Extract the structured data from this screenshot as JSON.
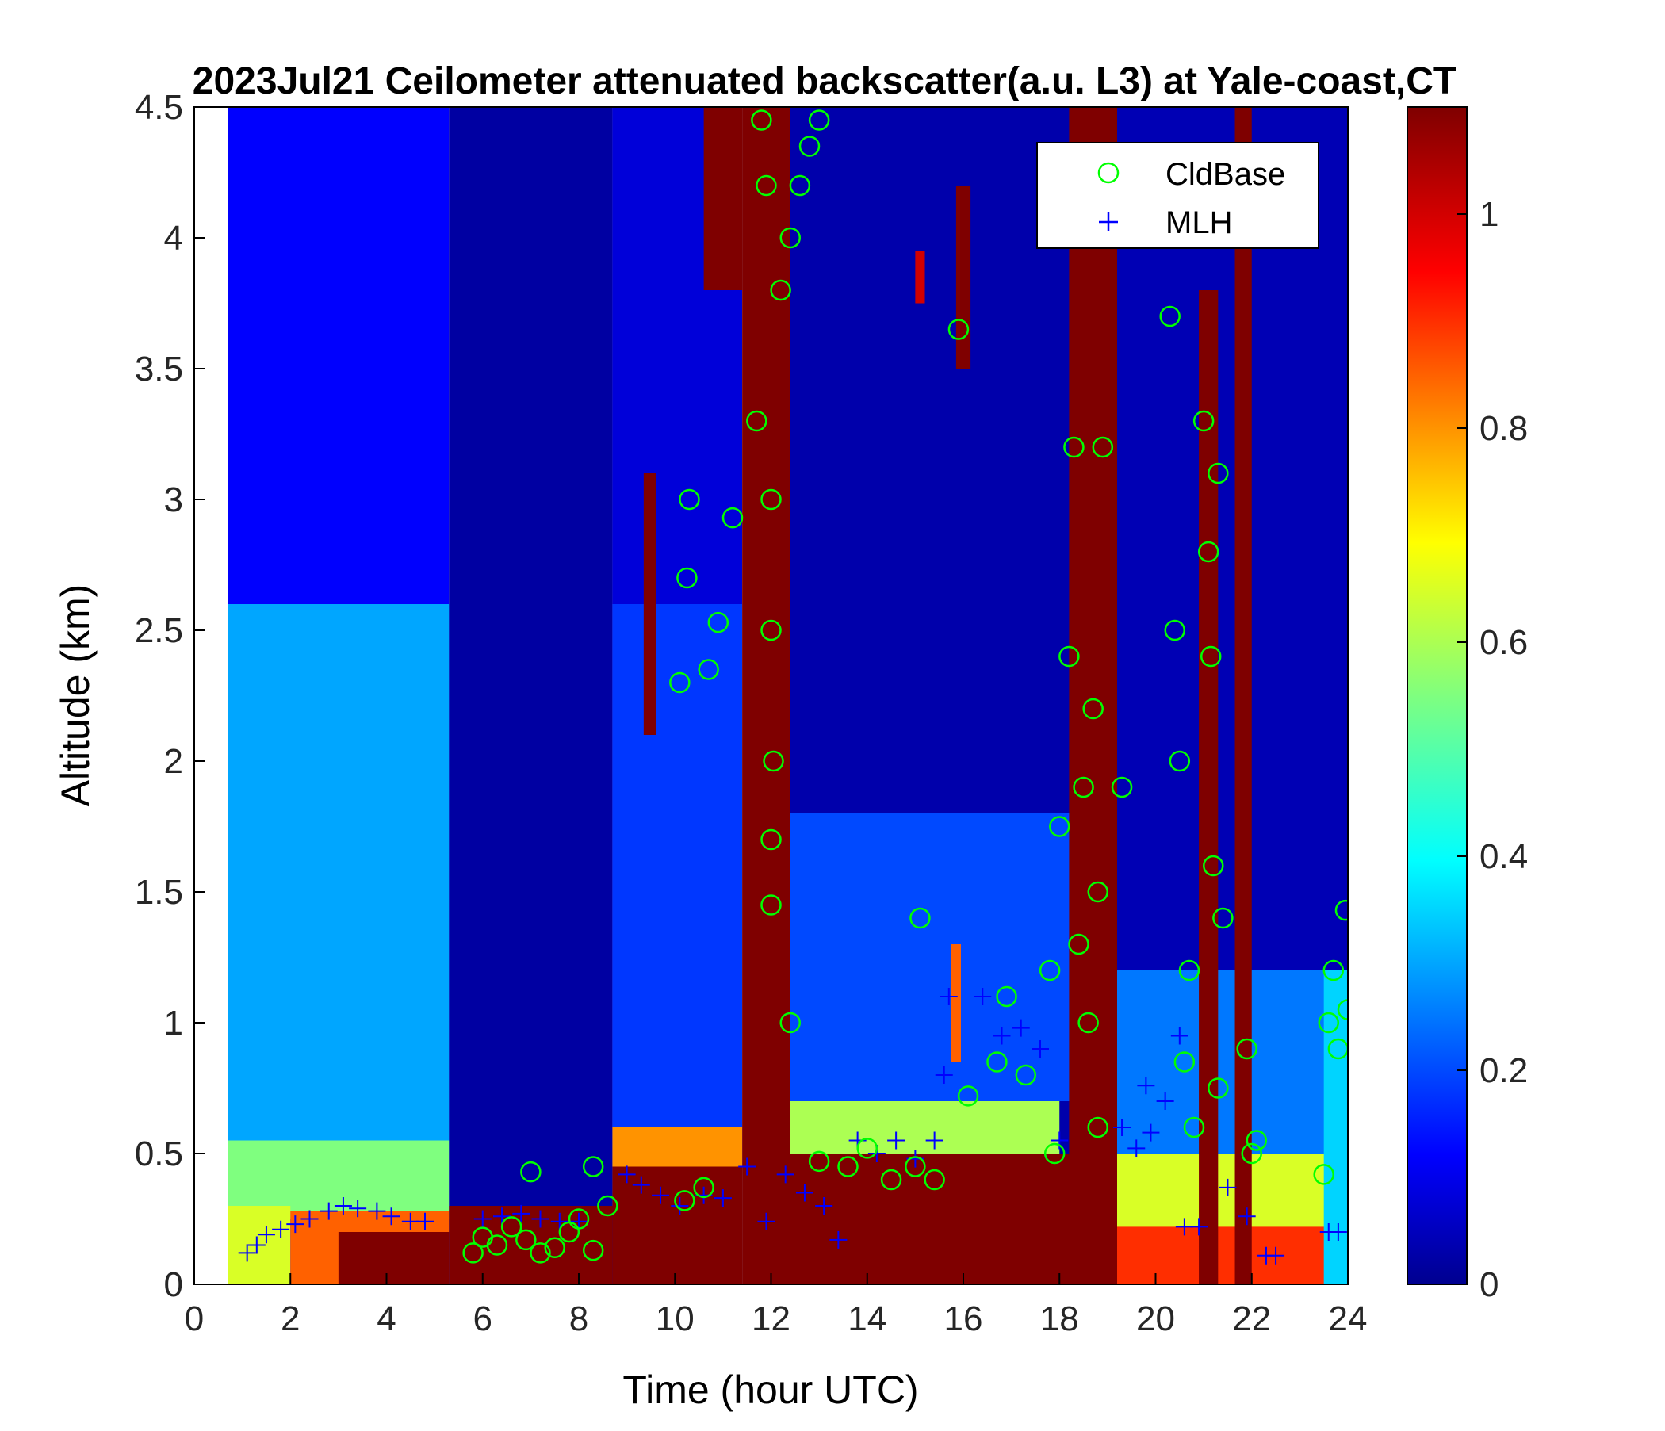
{
  "chart_data": {
    "type": "heatmap",
    "title": "2023Jul21 Ceilometer attenuated backscatter(a.u. L3) at Yale-coast,CT",
    "xlabel": "Time (hour UTC)",
    "ylabel": "Altitude (km)",
    "xlim": [
      0,
      24
    ],
    "ylim": [
      0,
      4.5
    ],
    "xticks": [
      0,
      2,
      4,
      6,
      8,
      10,
      12,
      14,
      16,
      18,
      20,
      22,
      24
    ],
    "yticks": [
      0,
      0.5,
      1,
      1.5,
      2,
      2.5,
      3,
      3.5,
      4,
      4.5
    ],
    "xtick_labels": [
      "0",
      "2",
      "4",
      "6",
      "8",
      "10",
      "12",
      "14",
      "16",
      "18",
      "20",
      "22",
      "24"
    ],
    "ytick_labels": [
      "0",
      "0.5",
      "1",
      "1.5",
      "2",
      "2.5",
      "3",
      "3.5",
      "4",
      "4.5"
    ],
    "colorbar": {
      "colormap": "jet",
      "range": [
        0,
        1.1
      ],
      "ticks": [
        0,
        0.2,
        0.4,
        0.6,
        0.8,
        1
      ],
      "tick_labels": [
        "0",
        "0.2",
        "0.4",
        "0.6",
        "0.8",
        "1"
      ]
    },
    "grid": false,
    "legend": {
      "position": "top-right",
      "entries": [
        {
          "label": "CldBase",
          "marker": "circle",
          "color": "#00ff00"
        },
        {
          "label": "MLH",
          "marker": "plus",
          "color": "#0000ff"
        }
      ]
    },
    "heatmap_regions": [
      {
        "t0": 0.7,
        "t1": 5.3,
        "a0": 0.0,
        "a1": 4.5,
        "value": 0.12
      },
      {
        "t0": 0.7,
        "t1": 5.3,
        "a0": 0.5,
        "a1": 2.6,
        "value": 0.3
      },
      {
        "t0": 0.7,
        "t1": 5.3,
        "a0": 0.25,
        "a1": 0.55,
        "value": 0.55
      },
      {
        "t0": 0.7,
        "t1": 2.0,
        "a0": 0.0,
        "a1": 0.3,
        "value": 0.65
      },
      {
        "t0": 2.0,
        "t1": 5.3,
        "a0": 0.0,
        "a1": 0.28,
        "value": 0.85
      },
      {
        "t0": 3.0,
        "t1": 5.3,
        "a0": 0.0,
        "a1": 0.2,
        "value": 1.1
      },
      {
        "t0": 5.3,
        "t1": 8.7,
        "a0": 0.0,
        "a1": 4.5,
        "value": 0.02
      },
      {
        "t0": 5.3,
        "t1": 8.7,
        "a0": 0.0,
        "a1": 0.3,
        "value": 1.1
      },
      {
        "t0": 8.7,
        "t1": 11.4,
        "a0": 0.0,
        "a1": 4.5,
        "value": 0.08
      },
      {
        "t0": 8.7,
        "t1": 11.4,
        "a0": 0.6,
        "a1": 2.6,
        "value": 0.18
      },
      {
        "t0": 8.7,
        "t1": 11.4,
        "a0": 0.45,
        "a1": 0.6,
        "value": 0.8
      },
      {
        "t0": 8.7,
        "t1": 11.4,
        "a0": 0.0,
        "a1": 0.45,
        "value": 1.1
      },
      {
        "t0": 9.35,
        "t1": 9.6,
        "a0": 2.1,
        "a1": 3.1,
        "value": 1.1
      },
      {
        "t0": 11.4,
        "t1": 12.4,
        "a0": 0.0,
        "a1": 4.5,
        "value": 1.1
      },
      {
        "t0": 10.6,
        "t1": 11.4,
        "a0": 3.8,
        "a1": 4.5,
        "value": 1.1
      },
      {
        "t0": 12.4,
        "t1": 19.2,
        "a0": 0.0,
        "a1": 4.5,
        "value": 0.03
      },
      {
        "t0": 12.4,
        "t1": 19.2,
        "a0": 0.7,
        "a1": 1.8,
        "value": 0.2
      },
      {
        "t0": 12.4,
        "t1": 18.0,
        "a0": 0.5,
        "a1": 0.7,
        "value": 0.6
      },
      {
        "t0": 12.4,
        "t1": 19.2,
        "a0": 0.0,
        "a1": 0.5,
        "value": 1.1
      },
      {
        "t0": 15.85,
        "t1": 16.15,
        "a0": 3.5,
        "a1": 4.2,
        "value": 1.1
      },
      {
        "t0": 15.0,
        "t1": 15.2,
        "a0": 3.75,
        "a1": 3.95,
        "value": 1.0
      },
      {
        "t0": 15.75,
        "t1": 15.95,
        "a0": 0.85,
        "a1": 1.3,
        "value": 0.85
      },
      {
        "t0": 18.2,
        "t1": 19.2,
        "a0": 0.0,
        "a1": 4.5,
        "value": 1.1
      },
      {
        "t0": 19.2,
        "t1": 24.0,
        "a0": 0.0,
        "a1": 4.5,
        "value": 0.04
      },
      {
        "t0": 19.2,
        "t1": 24.0,
        "a0": 0.4,
        "a1": 1.2,
        "value": 0.25
      },
      {
        "t0": 19.2,
        "t1": 24.0,
        "a0": 0.2,
        "a1": 0.5,
        "value": 0.65
      },
      {
        "t0": 19.2,
        "t1": 24.0,
        "a0": 0.0,
        "a1": 0.22,
        "value": 0.9
      },
      {
        "t0": 20.9,
        "t1": 21.3,
        "a0": 0.0,
        "a1": 3.8,
        "value": 1.1
      },
      {
        "t0": 21.65,
        "t1": 22.0,
        "a0": 0.0,
        "a1": 4.5,
        "value": 1.1
      },
      {
        "t0": 23.5,
        "t1": 24.0,
        "a0": 0.0,
        "a1": 1.2,
        "value": 0.35
      }
    ],
    "cloud_base": [
      {
        "x": 5.8,
        "y": 0.12
      },
      {
        "x": 6.0,
        "y": 0.18
      },
      {
        "x": 6.3,
        "y": 0.15
      },
      {
        "x": 6.6,
        "y": 0.22
      },
      {
        "x": 6.9,
        "y": 0.17
      },
      {
        "x": 7.2,
        "y": 0.12
      },
      {
        "x": 7.5,
        "y": 0.14
      },
      {
        "x": 7.8,
        "y": 0.2
      },
      {
        "x": 8.0,
        "y": 0.25
      },
      {
        "x": 8.3,
        "y": 0.13
      },
      {
        "x": 8.6,
        "y": 0.3
      },
      {
        "x": 7.0,
        "y": 0.43
      },
      {
        "x": 8.3,
        "y": 0.45
      },
      {
        "x": 10.1,
        "y": 2.3
      },
      {
        "x": 10.25,
        "y": 2.7
      },
      {
        "x": 10.3,
        "y": 3.0
      },
      {
        "x": 10.7,
        "y": 2.35
      },
      {
        "x": 10.9,
        "y": 2.53
      },
      {
        "x": 10.2,
        "y": 0.32
      },
      {
        "x": 10.6,
        "y": 0.37
      },
      {
        "x": 11.2,
        "y": 2.93
      },
      {
        "x": 11.7,
        "y": 3.3
      },
      {
        "x": 11.8,
        "y": 4.45
      },
      {
        "x": 11.9,
        "y": 4.2
      },
      {
        "x": 12.0,
        "y": 3.0
      },
      {
        "x": 12.0,
        "y": 2.5
      },
      {
        "x": 12.05,
        "y": 2.0
      },
      {
        "x": 12.0,
        "y": 1.7
      },
      {
        "x": 12.0,
        "y": 1.45
      },
      {
        "x": 12.2,
        "y": 3.8
      },
      {
        "x": 12.4,
        "y": 4.0
      },
      {
        "x": 12.6,
        "y": 4.2
      },
      {
        "x": 12.8,
        "y": 4.35
      },
      {
        "x": 13.0,
        "y": 4.45
      },
      {
        "x": 12.4,
        "y": 1.0
      },
      {
        "x": 13.0,
        "y": 0.47
      },
      {
        "x": 13.6,
        "y": 0.45
      },
      {
        "x": 14.0,
        "y": 0.52
      },
      {
        "x": 14.5,
        "y": 0.4
      },
      {
        "x": 15.0,
        "y": 0.45
      },
      {
        "x": 15.1,
        "y": 1.4
      },
      {
        "x": 15.4,
        "y": 0.4
      },
      {
        "x": 15.9,
        "y": 3.65
      },
      {
        "x": 16.1,
        "y": 0.72
      },
      {
        "x": 16.7,
        "y": 0.85
      },
      {
        "x": 16.9,
        "y": 1.1
      },
      {
        "x": 17.3,
        "y": 0.8
      },
      {
        "x": 17.8,
        "y": 1.2
      },
      {
        "x": 17.9,
        "y": 0.5
      },
      {
        "x": 18.0,
        "y": 1.75
      },
      {
        "x": 18.2,
        "y": 2.4
      },
      {
        "x": 18.3,
        "y": 3.2
      },
      {
        "x": 18.4,
        "y": 1.3
      },
      {
        "x": 18.5,
        "y": 1.9
      },
      {
        "x": 18.6,
        "y": 1.0
      },
      {
        "x": 18.7,
        "y": 2.2
      },
      {
        "x": 18.8,
        "y": 1.5
      },
      {
        "x": 18.8,
        "y": 0.6
      },
      {
        "x": 18.9,
        "y": 3.2
      },
      {
        "x": 19.3,
        "y": 1.9
      },
      {
        "x": 20.3,
        "y": 3.7
      },
      {
        "x": 20.4,
        "y": 2.5
      },
      {
        "x": 20.5,
        "y": 2.0
      },
      {
        "x": 20.6,
        "y": 0.85
      },
      {
        "x": 20.7,
        "y": 1.2
      },
      {
        "x": 20.8,
        "y": 0.6
      },
      {
        "x": 21.0,
        "y": 3.3
      },
      {
        "x": 21.1,
        "y": 2.8
      },
      {
        "x": 21.15,
        "y": 2.4
      },
      {
        "x": 21.2,
        "y": 1.6
      },
      {
        "x": 21.3,
        "y": 3.1
      },
      {
        "x": 21.4,
        "y": 1.4
      },
      {
        "x": 21.3,
        "y": 0.75
      },
      {
        "x": 21.9,
        "y": 0.9
      },
      {
        "x": 22.0,
        "y": 0.5
      },
      {
        "x": 22.1,
        "y": 0.55
      },
      {
        "x": 23.5,
        "y": 0.42
      },
      {
        "x": 23.6,
        "y": 1.0
      },
      {
        "x": 23.7,
        "y": 1.2
      },
      {
        "x": 23.8,
        "y": 0.9
      },
      {
        "x": 23.95,
        "y": 1.43
      },
      {
        "x": 24.0,
        "y": 1.05
      }
    ],
    "mlh": [
      {
        "x": 1.1,
        "y": 0.12
      },
      {
        "x": 1.3,
        "y": 0.15
      },
      {
        "x": 1.5,
        "y": 0.19
      },
      {
        "x": 1.8,
        "y": 0.21
      },
      {
        "x": 2.1,
        "y": 0.23
      },
      {
        "x": 2.4,
        "y": 0.25
      },
      {
        "x": 2.8,
        "y": 0.28
      },
      {
        "x": 3.1,
        "y": 0.3
      },
      {
        "x": 3.4,
        "y": 0.29
      },
      {
        "x": 3.8,
        "y": 0.28
      },
      {
        "x": 4.1,
        "y": 0.26
      },
      {
        "x": 4.5,
        "y": 0.24
      },
      {
        "x": 4.8,
        "y": 0.24
      },
      {
        "x": 6.0,
        "y": 0.25
      },
      {
        "x": 6.4,
        "y": 0.26
      },
      {
        "x": 6.8,
        "y": 0.27
      },
      {
        "x": 7.2,
        "y": 0.25
      },
      {
        "x": 7.6,
        "y": 0.24
      },
      {
        "x": 8.0,
        "y": 0.24
      },
      {
        "x": 9.0,
        "y": 0.42
      },
      {
        "x": 9.3,
        "y": 0.38
      },
      {
        "x": 9.7,
        "y": 0.34
      },
      {
        "x": 10.1,
        "y": 0.3
      },
      {
        "x": 10.6,
        "y": 0.34
      },
      {
        "x": 11.0,
        "y": 0.33
      },
      {
        "x": 11.5,
        "y": 0.45
      },
      {
        "x": 11.9,
        "y": 0.24
      },
      {
        "x": 12.3,
        "y": 0.42
      },
      {
        "x": 12.7,
        "y": 0.35
      },
      {
        "x": 13.1,
        "y": 0.3
      },
      {
        "x": 13.4,
        "y": 0.17
      },
      {
        "x": 13.8,
        "y": 0.55
      },
      {
        "x": 14.2,
        "y": 0.5
      },
      {
        "x": 14.6,
        "y": 0.55
      },
      {
        "x": 15.0,
        "y": 0.48
      },
      {
        "x": 15.4,
        "y": 0.55
      },
      {
        "x": 15.7,
        "y": 1.1
      },
      {
        "x": 15.6,
        "y": 0.8
      },
      {
        "x": 16.4,
        "y": 1.1
      },
      {
        "x": 16.8,
        "y": 0.95
      },
      {
        "x": 17.2,
        "y": 0.98
      },
      {
        "x": 17.6,
        "y": 0.9
      },
      {
        "x": 18.0,
        "y": 0.55
      },
      {
        "x": 19.3,
        "y": 0.6
      },
      {
        "x": 19.6,
        "y": 0.52
      },
      {
        "x": 19.9,
        "y": 0.58
      },
      {
        "x": 19.8,
        "y": 0.76
      },
      {
        "x": 20.2,
        "y": 0.7
      },
      {
        "x": 20.5,
        "y": 0.95
      },
      {
        "x": 20.6,
        "y": 0.22
      },
      {
        "x": 20.9,
        "y": 0.22
      },
      {
        "x": 21.5,
        "y": 0.37
      },
      {
        "x": 21.9,
        "y": 0.26
      },
      {
        "x": 22.3,
        "y": 0.11
      },
      {
        "x": 22.5,
        "y": 0.11
      },
      {
        "x": 23.6,
        "y": 0.2
      },
      {
        "x": 23.8,
        "y": 0.2
      }
    ]
  }
}
